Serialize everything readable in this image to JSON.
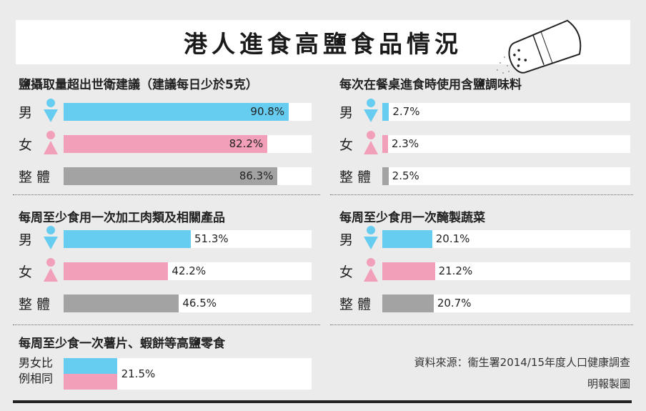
{
  "title": "港人進食高鹽食品情況",
  "colors": {
    "male": "#67cdf0",
    "female": "#f29fb9",
    "overall": "#a3a3a3"
  },
  "row_labels": {
    "male": "男",
    "female": "女",
    "overall": "整 體"
  },
  "chart_data": [
    {
      "type": "bar",
      "title": "鹽攝取量超出世衛建議（建議每日少於5克）",
      "categories": [
        "男",
        "女",
        "整體"
      ],
      "values": [
        90.8,
        82.2,
        86.3
      ],
      "labels": [
        "90.8%",
        "82.2%",
        "86.3%"
      ],
      "xlim": [
        0,
        100
      ]
    },
    {
      "type": "bar",
      "title": "每次在餐桌進食時使用含鹽調味料",
      "categories": [
        "男",
        "女",
        "整體"
      ],
      "values": [
        2.7,
        2.3,
        2.5
      ],
      "labels": [
        "2.7%",
        "2.3%",
        "2.5%"
      ],
      "xlim": [
        0,
        100
      ]
    },
    {
      "type": "bar",
      "title": "每周至少食用一次加工肉類及相關產品",
      "categories": [
        "男",
        "女",
        "整體"
      ],
      "values": [
        51.3,
        42.2,
        46.5
      ],
      "labels": [
        "51.3%",
        "42.2%",
        "46.5%"
      ],
      "xlim": [
        0,
        100
      ]
    },
    {
      "type": "bar",
      "title": "每周至少食用一次醃製蔬菜",
      "categories": [
        "男",
        "女",
        "整體"
      ],
      "values": [
        20.1,
        21.2,
        20.7
      ],
      "labels": [
        "20.1%",
        "21.2%",
        "20.7%"
      ],
      "xlim": [
        0,
        100
      ]
    },
    {
      "type": "bar",
      "title": "每周至少食一次薯片、蝦餅等高鹽零食",
      "categories": [
        "男女比例相同"
      ],
      "values": [
        21.5
      ],
      "labels": [
        "21.5%"
      ],
      "xlim": [
        0,
        100
      ]
    }
  ],
  "snack_label_line1": "男女比",
  "snack_label_line2": "例相同",
  "source_line1": "資料來源：衞生署2014/15年度人口健康調查",
  "source_line2": "明報製圖"
}
